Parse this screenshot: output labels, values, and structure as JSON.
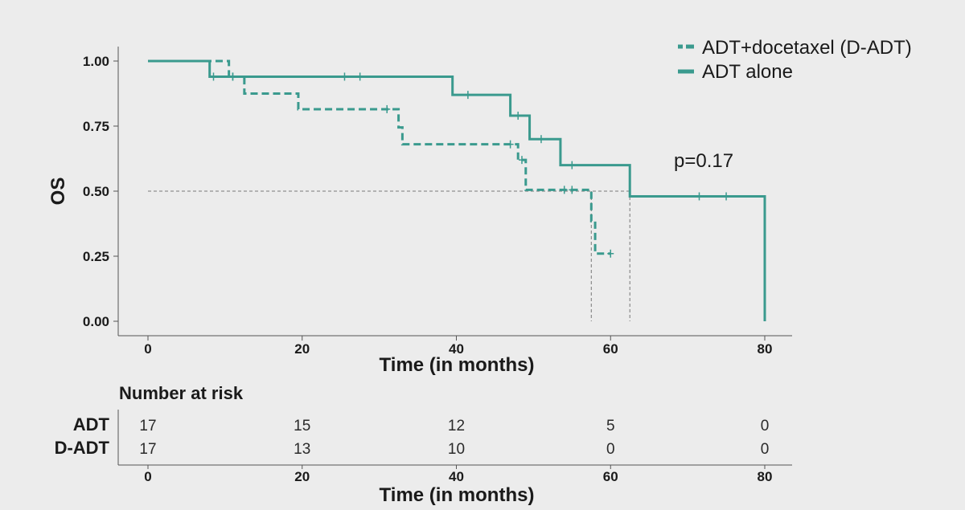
{
  "chart_data": {
    "type": "line",
    "subtype": "kaplan-meier",
    "ylabel": "OS",
    "xlabel": "Time (in months)",
    "xlim": [
      0,
      80
    ],
    "ylim": [
      0,
      1
    ],
    "x_ticks": [
      0,
      20,
      40,
      60,
      80
    ],
    "y_ticks": [
      "0.00",
      "0.25",
      "0.50",
      "0.75",
      "1.00"
    ],
    "annotation": "p=0.17",
    "legend_position": "top-right",
    "median_reference_y": 0.5,
    "medians": [
      57.5,
      62.5
    ],
    "series": [
      {
        "name": "ADT+docetaxel (D-ADT)",
        "style": "dashed",
        "color": "#3a9a8e",
        "steps": [
          [
            0,
            1.0
          ],
          [
            10.5,
            0.94
          ],
          [
            12.5,
            0.875
          ],
          [
            19.5,
            0.815
          ],
          [
            32.5,
            0.745
          ],
          [
            33,
            0.68
          ],
          [
            48,
            0.62
          ],
          [
            49,
            0.505
          ],
          [
            57.5,
            0.385
          ],
          [
            58,
            0.26
          ],
          [
            60,
            0.26
          ]
        ],
        "censored": [
          [
            8.5,
            0.94
          ],
          [
            11,
            0.94
          ],
          [
            31,
            0.815
          ],
          [
            47,
            0.68
          ],
          [
            48.5,
            0.62
          ],
          [
            54,
            0.505
          ],
          [
            55,
            0.505
          ],
          [
            60,
            0.26
          ]
        ]
      },
      {
        "name": "ADT alone",
        "style": "solid",
        "color": "#3a9a8e",
        "steps": [
          [
            0,
            1.0
          ],
          [
            8,
            0.94
          ],
          [
            39.5,
            0.87
          ],
          [
            47,
            0.79
          ],
          [
            49.5,
            0.7
          ],
          [
            53.5,
            0.6
          ],
          [
            62.5,
            0.48
          ],
          [
            80,
            0.48
          ],
          [
            80,
            0.0
          ]
        ],
        "censored": [
          [
            11,
            0.94
          ],
          [
            25.5,
            0.94
          ],
          [
            27.5,
            0.94
          ],
          [
            41.5,
            0.87
          ],
          [
            48,
            0.79
          ],
          [
            51,
            0.7
          ],
          [
            55,
            0.6
          ],
          [
            71.5,
            0.48
          ],
          [
            75,
            0.48
          ]
        ]
      }
    ],
    "risk_table": {
      "title": "Number at risk",
      "xlabel": "Time (in months)",
      "times": [
        0,
        20,
        40,
        60,
        80
      ],
      "rows": [
        {
          "label": "ADT",
          "values": [
            "17",
            "15",
            "12",
            "5",
            "0"
          ]
        },
        {
          "label": "D-ADT",
          "values": [
            "17",
            "13",
            "10",
            "0",
            "0"
          ]
        }
      ]
    }
  }
}
